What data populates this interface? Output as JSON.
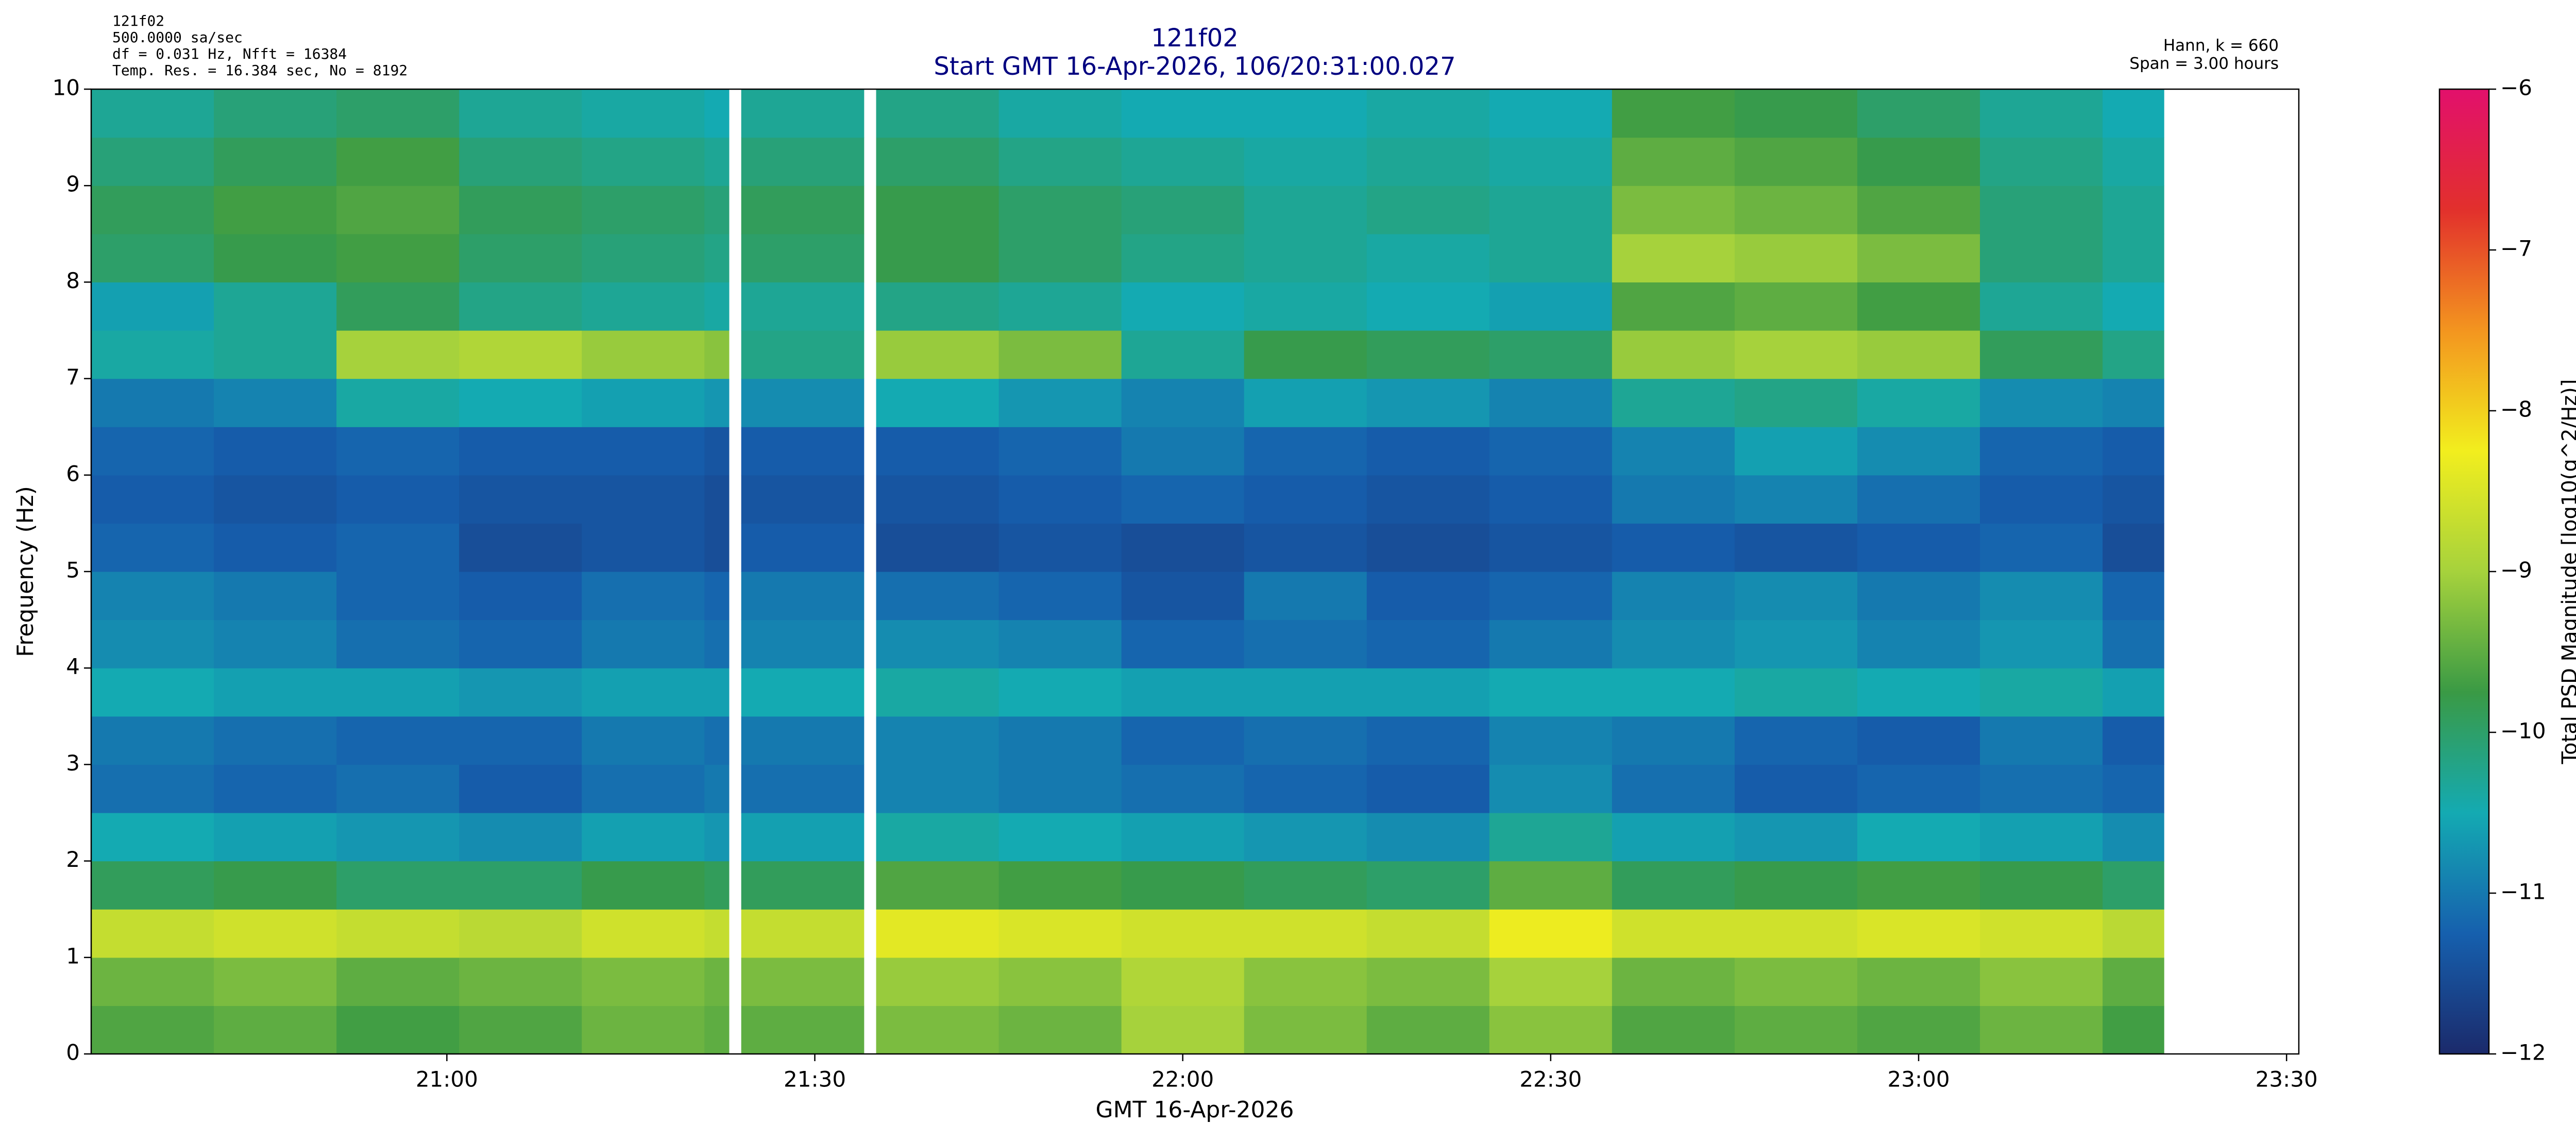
{
  "chart_data": {
    "type": "heatmap",
    "title": "121f02",
    "subtitle": "Start GMT 16-Apr-2026, 106/20:31:00.027",
    "info_left": [
      "121f02",
      "500.0000 sa/sec",
      "df = 0.031 Hz,  Nfft = 16384",
      "Temp. Res. = 16.384 sec, No = 8192"
    ],
    "info_right": [
      "Hann, k = 660",
      "Span = 3.00 hours"
    ],
    "xlabel": "GMT 16-Apr-2026",
    "ylabel": "Frequency (Hz)",
    "colorbar_label": "Total PSD Magnitude [log10(g^2/Hz)]",
    "xlim": [
      "20:31",
      "23:31"
    ],
    "xticks": [
      "21:00",
      "21:30",
      "22:00",
      "22:30",
      "23:00",
      "23:30"
    ],
    "ylim": [
      0,
      10
    ],
    "yticks": [
      0,
      1,
      2,
      3,
      4,
      5,
      6,
      7,
      8,
      9,
      10
    ],
    "clim": [
      -12,
      -6
    ],
    "cticks": [
      {
        "value": -12,
        "label": "−12"
      },
      {
        "value": -11,
        "label": "−11"
      },
      {
        "value": -10,
        "label": "−10"
      },
      {
        "value": -9,
        "label": "−9"
      },
      {
        "value": -8,
        "label": "−8"
      },
      {
        "value": -7,
        "label": "−7"
      },
      {
        "value": -6,
        "label": "−6"
      }
    ],
    "colormap": [
      "#1b2a6b",
      "#1660ae",
      "#14aab2",
      "#3a9a45",
      "#a6d23c",
      "#f2ee1e",
      "#f3951f",
      "#e2302c",
      "#e2106c"
    ],
    "x": [
      "20:31",
      "20:41",
      "20:51",
      "21:01",
      "21:11",
      "21:21",
      "21:23",
      "21:24",
      "21:34",
      "21:35",
      "21:45",
      "21:55",
      "22:05",
      "22:15",
      "22:25",
      "22:35",
      "22:45",
      "22:55",
      "23:05",
      "23:15",
      "23:20"
    ],
    "y": [
      0,
      0.5,
      1,
      1.5,
      2,
      2.5,
      3,
      3.5,
      4,
      4.5,
      5,
      5.5,
      6,
      6.5,
      7,
      7.5,
      8,
      8.5,
      9,
      9.5,
      10
    ],
    "z": [
      [
        -9.6,
        -9.5,
        -9.7,
        -9.6,
        -9.4,
        -9.5,
        null,
        -9.5,
        null,
        -9.3,
        -9.4,
        -9.0,
        -9.3,
        -9.5,
        -9.2,
        -9.6,
        -9.5,
        -9.6,
        -9.4,
        -9.7
      ],
      [
        -9.4,
        -9.3,
        -9.5,
        -9.4,
        -9.3,
        -9.4,
        null,
        -9.3,
        null,
        -9.1,
        -9.2,
        -8.9,
        -9.2,
        -9.3,
        -9.0,
        -9.4,
        -9.3,
        -9.4,
        -9.2,
        -9.5
      ],
      [
        -8.7,
        -8.6,
        -8.7,
        -8.8,
        -8.6,
        -8.7,
        null,
        -8.7,
        null,
        -8.4,
        -8.5,
        -8.6,
        -8.6,
        -8.7,
        -8.3,
        -8.6,
        -8.6,
        -8.5,
        -8.6,
        -8.8
      ],
      [
        -9.9,
        -9.8,
        -10.0,
        -10.0,
        -9.8,
        -9.9,
        null,
        -9.9,
        null,
        -9.6,
        -9.7,
        -9.8,
        -9.9,
        -10.0,
        -9.5,
        -9.9,
        -9.8,
        -9.7,
        -9.8,
        -10.0
      ],
      [
        -10.5,
        -10.6,
        -10.7,
        -10.8,
        -10.6,
        -10.7,
        null,
        -10.6,
        null,
        -10.4,
        -10.5,
        -10.6,
        -10.7,
        -10.8,
        -10.3,
        -10.6,
        -10.7,
        -10.5,
        -10.6,
        -10.8
      ],
      [
        -11.1,
        -11.2,
        -11.1,
        -11.3,
        -11.1,
        -11.0,
        null,
        -11.1,
        null,
        -10.9,
        -11.0,
        -11.1,
        -11.2,
        -11.3,
        -10.8,
        -11.1,
        -11.3,
        -11.2,
        -11.1,
        -11.2
      ],
      [
        -11.0,
        -11.1,
        -11.2,
        -11.2,
        -11.0,
        -11.1,
        null,
        -11.0,
        null,
        -10.9,
        -11.0,
        -11.2,
        -11.1,
        -11.2,
        -10.9,
        -11.0,
        -11.2,
        -11.3,
        -11.0,
        -11.3
      ],
      [
        -10.5,
        -10.6,
        -10.6,
        -10.7,
        -10.6,
        -10.6,
        null,
        -10.5,
        null,
        -10.4,
        -10.5,
        -10.6,
        -10.6,
        -10.6,
        -10.5,
        -10.5,
        -10.4,
        -10.5,
        -10.4,
        -10.6
      ],
      [
        -10.8,
        -10.9,
        -11.1,
        -11.2,
        -11.0,
        -11.1,
        null,
        -10.9,
        null,
        -10.8,
        -10.9,
        -11.2,
        -11.1,
        -11.2,
        -11.0,
        -10.8,
        -10.7,
        -10.9,
        -10.7,
        -11.1
      ],
      [
        -10.9,
        -11.0,
        -11.2,
        -11.3,
        -11.1,
        -11.2,
        null,
        -11.0,
        null,
        -11.1,
        -11.2,
        -11.4,
        -11.0,
        -11.3,
        -11.2,
        -10.9,
        -10.8,
        -11.0,
        -10.8,
        -11.2
      ],
      [
        -11.2,
        -11.3,
        -11.2,
        -11.5,
        -11.4,
        -11.5,
        null,
        -11.3,
        null,
        -11.5,
        -11.4,
        -11.5,
        -11.4,
        -11.5,
        -11.4,
        -11.3,
        -11.4,
        -11.3,
        -11.2,
        -11.5
      ],
      [
        -11.3,
        -11.4,
        -11.3,
        -11.4,
        -11.4,
        -11.5,
        null,
        -11.4,
        null,
        -11.4,
        -11.3,
        -11.2,
        -11.3,
        -11.4,
        -11.3,
        -11.0,
        -10.9,
        -11.1,
        -11.3,
        -11.4
      ],
      [
        -11.2,
        -11.3,
        -11.2,
        -11.3,
        -11.3,
        -11.4,
        null,
        -11.3,
        null,
        -11.3,
        -11.2,
        -11.0,
        -11.2,
        -11.3,
        -11.2,
        -10.9,
        -10.6,
        -10.8,
        -11.2,
        -11.3
      ],
      [
        -11.0,
        -10.9,
        -10.4,
        -10.5,
        -10.6,
        -10.7,
        null,
        -10.8,
        null,
        -10.5,
        -10.7,
        -10.9,
        -10.6,
        -10.7,
        -10.9,
        -10.3,
        -10.2,
        -10.4,
        -10.8,
        -10.9
      ],
      [
        -10.4,
        -10.3,
        -9.0,
        -8.9,
        -9.1,
        -9.2,
        null,
        -10.2,
        null,
        -9.1,
        -9.3,
        -10.3,
        -9.8,
        -9.9,
        -10.0,
        -9.1,
        -9.0,
        -9.1,
        -9.9,
        -10.2
      ],
      [
        -10.6,
        -10.3,
        -9.9,
        -10.2,
        -10.3,
        -10.4,
        null,
        -10.3,
        null,
        -10.2,
        -10.3,
        -10.5,
        -10.4,
        -10.5,
        -10.6,
        -9.6,
        -9.5,
        -9.7,
        -10.3,
        -10.5
      ],
      [
        -10.0,
        -9.8,
        -9.7,
        -10.0,
        -10.1,
        -10.2,
        null,
        -10.0,
        null,
        -9.8,
        -10.0,
        -10.2,
        -10.3,
        -10.4,
        -10.3,
        -9.0,
        -9.1,
        -9.3,
        -10.1,
        -10.3
      ],
      [
        -9.9,
        -9.7,
        -9.6,
        -9.9,
        -10.0,
        -10.1,
        null,
        -9.9,
        null,
        -9.8,
        -10.0,
        -10.1,
        -10.3,
        -10.2,
        -10.3,
        -9.3,
        -9.4,
        -9.6,
        -10.1,
        -10.3
      ],
      [
        -10.1,
        -9.9,
        -9.7,
        -10.1,
        -10.2,
        -10.3,
        null,
        -10.1,
        null,
        -10.0,
        -10.2,
        -10.3,
        -10.4,
        -10.3,
        -10.4,
        -9.5,
        -9.6,
        -9.8,
        -10.2,
        -10.4
      ],
      [
        -10.3,
        -10.1,
        -10.0,
        -10.3,
        -10.4,
        -10.5,
        null,
        -10.3,
        null,
        -10.2,
        -10.4,
        -10.5,
        -10.5,
        -10.4,
        -10.5,
        -9.7,
        -9.8,
        -10.0,
        -10.3,
        -10.5
      ]
    ]
  }
}
